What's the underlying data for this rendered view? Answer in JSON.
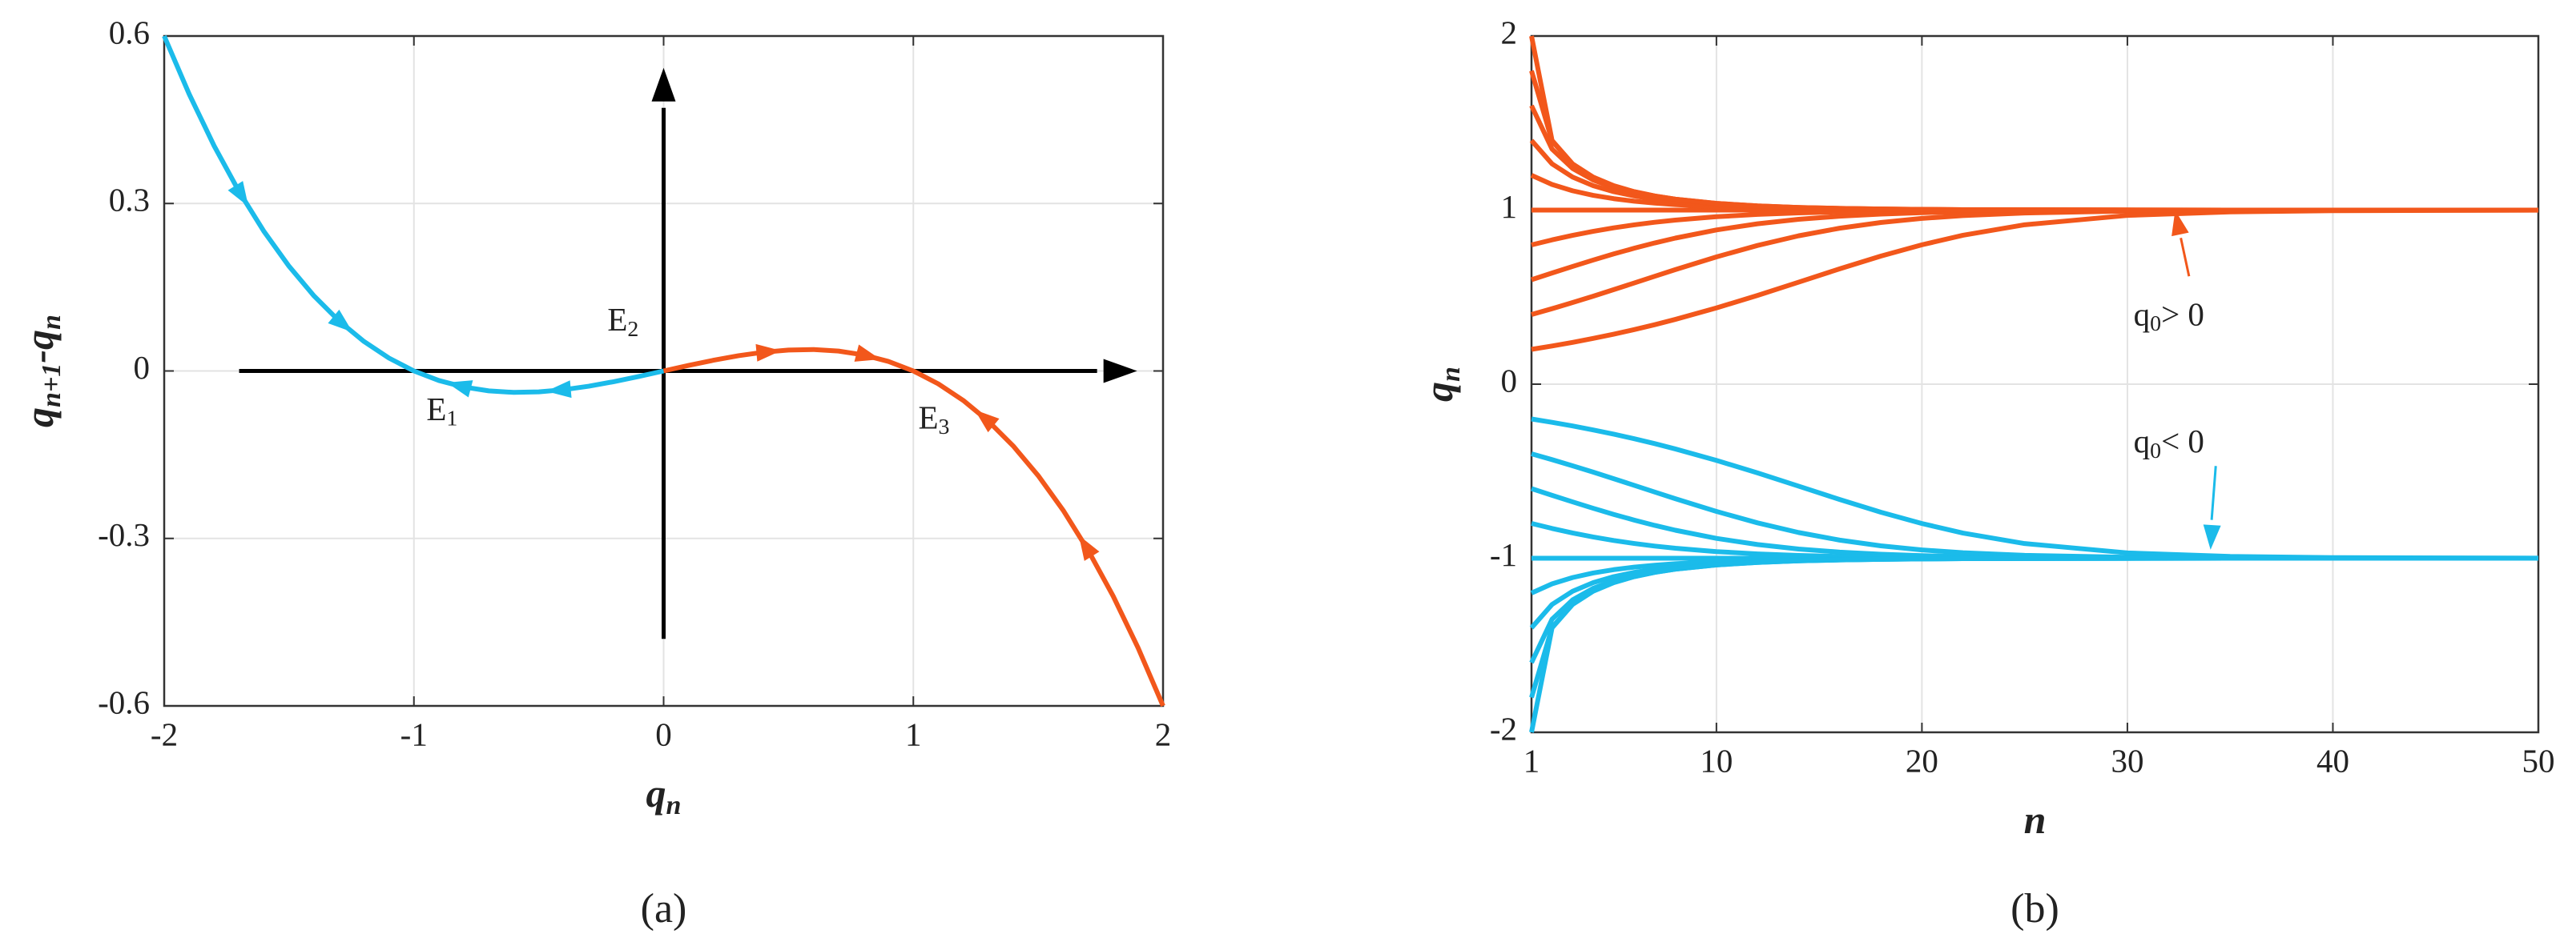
{
  "chart_data": [
    {
      "type": "line",
      "caption": "(a)",
      "xlabel": [
        "q",
        "n"
      ],
      "ylabel": [
        "q",
        "n+1",
        "-q",
        "n"
      ],
      "x": [
        -2,
        -1.9,
        -1.8,
        -1.7,
        -1.6,
        -1.5,
        -1.4,
        -1.3,
        -1.2,
        -1.1,
        -1,
        -0.9,
        -0.8,
        -0.7,
        -0.6,
        -0.5,
        -0.4,
        -0.3,
        -0.2,
        -0.1,
        0,
        0.1,
        0.2,
        0.3,
        0.4,
        0.5,
        0.6,
        0.7,
        0.8,
        0.9,
        1,
        1.1,
        1.2,
        1.3,
        1.4,
        1.5,
        1.6,
        1.7,
        1.8,
        1.9,
        2
      ],
      "series": [
        {
          "color": "#1bbbea",
          "values": [
            0.6,
            0.4959,
            0.4032,
            0.3213,
            0.2496,
            0.1875,
            0.1344,
            0.0897,
            0.0528,
            0.0231,
            0,
            -0.0171,
            -0.0288,
            -0.0357,
            -0.0384,
            -0.0375,
            -0.0336,
            -0.0273,
            -0.0192,
            -0.0099,
            0,
            null,
            null,
            null,
            null,
            null,
            null,
            null,
            null,
            null,
            null,
            null,
            null,
            null,
            null,
            null,
            null,
            null,
            null,
            null,
            null
          ]
        },
        {
          "color": "#f2571b",
          "values": [
            null,
            null,
            null,
            null,
            null,
            null,
            null,
            null,
            null,
            null,
            null,
            null,
            null,
            null,
            null,
            null,
            null,
            null,
            null,
            null,
            0,
            0.0099,
            0.0192,
            0.0273,
            0.0336,
            0.0375,
            0.0384,
            0.0357,
            0.0288,
            0.0171,
            0,
            -0.0231,
            -0.0528,
            -0.0897,
            -0.1344,
            -0.1875,
            -0.2496,
            -0.3213,
            -0.4032,
            -0.4959,
            -0.6
          ]
        }
      ],
      "annotations": [
        [
          "E",
          "1"
        ],
        [
          "E",
          "2"
        ],
        [
          "E",
          "3"
        ]
      ],
      "xlim": [
        -2,
        2
      ],
      "xticks": [
        -2,
        -1,
        0,
        1,
        2
      ],
      "ylim": [
        -0.6,
        0.6
      ],
      "yticks": [
        -0.6,
        -0.3,
        0,
        0.3,
        0.6
      ],
      "grid": true
    },
    {
      "type": "line",
      "caption": "(b)",
      "xlabel": [
        "n"
      ],
      "ylabel": [
        "q",
        "n"
      ],
      "x": [
        1,
        2,
        3,
        4,
        5,
        6,
        7,
        8,
        10,
        12,
        14,
        16,
        18,
        20,
        22,
        25,
        30,
        35,
        40,
        50
      ],
      "series": [
        {
          "color": "#f2571b",
          "values": [
            0.2,
            0.2192,
            0.2401,
            0.2627,
            0.2872,
            0.3135,
            0.3418,
            0.372,
            0.4378,
            0.5099,
            0.586,
            0.6626,
            0.7355,
            0.8006,
            0.8553,
            0.9157,
            0.9693,
            0.9895,
            0.9965,
            0.9996
          ]
        },
        {
          "color": "#f2571b",
          "values": [
            0.4,
            0.4336,
            0.4688,
            0.5054,
            0.543,
            0.5813,
            0.6198,
            0.658,
            0.7312,
            0.7969,
            0.8523,
            0.896,
            0.9288,
            0.9522,
            0.9684,
            0.9834,
            0.9945,
            0.9982,
            0.9994,
            0.9999
          ]
        },
        {
          "color": "#f2571b",
          "values": [
            0.6,
            0.6384,
            0.6762,
            0.7129,
            0.748,
            0.7809,
            0.8114,
            0.8391,
            0.8859,
            0.9213,
            0.947,
            0.9648,
            0.977,
            0.985,
            0.9903,
            0.995,
            0.9984,
            0.9995,
            0.9998,
            1
          ]
        },
        {
          "color": "#f2571b",
          "values": [
            0.8,
            0.8288,
            0.8548,
            0.8778,
            0.8979,
            0.9153,
            0.9302,
            0.9427,
            0.9619,
            0.975,
            0.9837,
            0.9895,
            0.9932,
            0.9957,
            0.9972,
            0.9986,
            0.9995,
            0.9999,
            1,
            1
          ]
        },
        {
          "color": "#f2571b",
          "values": [
            1,
            1,
            1,
            1,
            1,
            1,
            1,
            1,
            1,
            1,
            1,
            1,
            1,
            1,
            1,
            1,
            1,
            1,
            1,
            1
          ]
        },
        {
          "color": "#f2571b",
          "values": [
            1.2,
            1.1472,
            1.1109,
            1.0849,
            1.0657,
            1.0512,
            1.0402,
            1.0317,
            1.0198,
            1.0125,
            1.0079,
            1.0051,
            1.0032,
            1.0021,
            1.0013,
            1.0007,
            1.0002,
            1.0001,
            1,
            1
          ]
        },
        {
          "color": "#f2571b",
          "values": [
            1.4,
            1.2656,
            1.1895,
            1.1401,
            1.1059,
            1.0813,
            1.063,
            1.0492,
            1.0304,
            1.0191,
            1.0121,
            1.0077,
            1.0049,
            1.0031,
            1.002,
            1.001,
            1.0003,
            1.0001,
            1,
            1
          ]
        },
        {
          "color": "#f2571b",
          "values": [
            1.6,
            1.3504,
            1.2392,
            1.1728,
            1.1288,
            1.0978,
            1.0753,
            1.0585,
            1.036,
            1.0225,
            1.0142,
            1.009,
            1.0057,
            1.0037,
            1.0023,
            1.0012,
            1.0004,
            1.0001,
            1,
            1
          ]
        },
        {
          "color": "#f2571b",
          "values": [
            1.8,
            1.3968,
            1.264,
            1.1884,
            1.1394,
            1.1054,
            1.0809,
            1.0627,
            1.0385,
            1.024,
            1.0151,
            1.0096,
            1.0061,
            1.0039,
            1.0025,
            1.0013,
            1.0004,
            1.0001,
            1,
            1
          ]
        },
        {
          "color": "#f2571b",
          "values": [
            2,
            1.4,
            1.2656,
            1.1895,
            1.1401,
            1.1059,
            1.0813,
            1.063,
            1.0386,
            1.0241,
            1.0152,
            1.0096,
            1.0061,
            1.0039,
            1.0025,
            1.0013,
            1.0004,
            1.0001,
            1,
            1
          ]
        },
        {
          "color": "#1bbbea",
          "values": [
            -0.2,
            -0.2192,
            -0.2401,
            -0.2627,
            -0.2872,
            -0.3135,
            -0.3418,
            -0.372,
            -0.4378,
            -0.5099,
            -0.586,
            -0.6626,
            -0.7355,
            -0.8006,
            -0.8553,
            -0.9157,
            -0.9693,
            -0.9895,
            -0.9965,
            -0.9996
          ]
        },
        {
          "color": "#1bbbea",
          "values": [
            -0.4,
            -0.4336,
            -0.4688,
            -0.5054,
            -0.543,
            -0.5813,
            -0.6198,
            -0.658,
            -0.7312,
            -0.7969,
            -0.8523,
            -0.896,
            -0.9288,
            -0.9522,
            -0.9684,
            -0.9834,
            -0.9945,
            -0.9982,
            -0.9994,
            -0.9999
          ]
        },
        {
          "color": "#1bbbea",
          "values": [
            -0.6,
            -0.6384,
            -0.6762,
            -0.7129,
            -0.748,
            -0.7809,
            -0.8114,
            -0.8391,
            -0.8859,
            -0.9213,
            -0.947,
            -0.9648,
            -0.977,
            -0.985,
            -0.9903,
            -0.995,
            -0.9984,
            -0.9995,
            -0.9998,
            -1
          ]
        },
        {
          "color": "#1bbbea",
          "values": [
            -0.8,
            -0.8288,
            -0.8548,
            -0.8778,
            -0.8979,
            -0.9153,
            -0.9302,
            -0.9427,
            -0.9619,
            -0.975,
            -0.9837,
            -0.9895,
            -0.9932,
            -0.9957,
            -0.9972,
            -0.9986,
            -0.9995,
            -0.9999,
            -1,
            -1
          ]
        },
        {
          "color": "#1bbbea",
          "values": [
            -1,
            -1,
            -1,
            -1,
            -1,
            -1,
            -1,
            -1,
            -1,
            -1,
            -1,
            -1,
            -1,
            -1,
            -1,
            -1,
            -1,
            -1,
            -1,
            -1
          ]
        },
        {
          "color": "#1bbbea",
          "values": [
            -1.2,
            -1.1472,
            -1.1109,
            -1.0849,
            -1.0657,
            -1.0512,
            -1.0402,
            -1.0317,
            -1.0198,
            -1.0125,
            -1.0079,
            -1.0051,
            -1.0032,
            -1.0021,
            -1.0013,
            -1.0007,
            -1.0002,
            -1.0001,
            -1,
            -1
          ]
        },
        {
          "color": "#1bbbea",
          "values": [
            -1.4,
            -1.2656,
            -1.1895,
            -1.1401,
            -1.1059,
            -1.0813,
            -1.063,
            -1.0492,
            -1.0304,
            -1.0191,
            -1.0121,
            -1.0077,
            -1.0049,
            -1.0031,
            -1.002,
            -1.001,
            -1.0003,
            -1.0001,
            -1,
            -1
          ]
        },
        {
          "color": "#1bbbea",
          "values": [
            -1.6,
            -1.3504,
            -1.2392,
            -1.1728,
            -1.1288,
            -1.0978,
            -1.0753,
            -1.0585,
            -1.036,
            -1.0225,
            -1.0142,
            -1.009,
            -1.0057,
            -1.0037,
            -1.0023,
            -1.0012,
            -1.0004,
            -1.0001,
            -1,
            -1
          ]
        },
        {
          "color": "#1bbbea",
          "values": [
            -1.8,
            -1.3968,
            -1.264,
            -1.1884,
            -1.1394,
            -1.1054,
            -1.0809,
            -1.0627,
            -1.0385,
            -1.024,
            -1.0151,
            -1.0096,
            -1.0061,
            -1.0039,
            -1.0025,
            -1.0013,
            -1.0004,
            -1.0001,
            -1,
            -1
          ]
        },
        {
          "color": "#1bbbea",
          "values": [
            -2,
            -1.4,
            -1.2656,
            -1.1895,
            -1.1401,
            -1.1059,
            -1.0813,
            -1.063,
            -1.0386,
            -1.0241,
            -1.0152,
            -1.0096,
            -1.0061,
            -1.0039,
            -1.0025,
            -1.0013,
            -1.0004,
            -1.0001,
            -1,
            -1
          ]
        }
      ],
      "annotations": [
        [
          "q",
          "0",
          "> 0"
        ],
        [
          "q",
          "0",
          "< 0"
        ]
      ],
      "xlim": [
        1,
        50
      ],
      "xticks": [
        1,
        10,
        20,
        30,
        40,
        50
      ],
      "ylim": [
        -2,
        2
      ],
      "yticks": [
        -2,
        -1,
        0,
        1,
        2
      ],
      "grid": true
    }
  ]
}
